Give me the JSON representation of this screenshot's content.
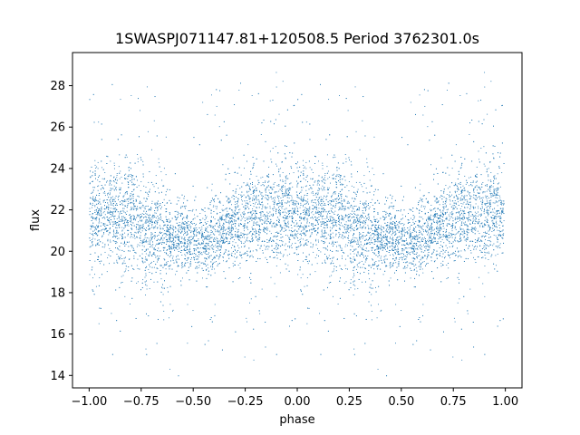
{
  "chart_data": {
    "type": "scatter",
    "title": "1SWASPJ071147.81+120508.5 Period 3762301.0s",
    "xlabel": "phase",
    "ylabel": "flux",
    "xlim": [
      -1.08,
      1.08
    ],
    "ylim": [
      13.4,
      29.6
    ],
    "x_ticks": [
      -1.0,
      -0.75,
      -0.5,
      -0.25,
      0.0,
      0.25,
      0.5,
      0.75,
      1.0
    ],
    "x_tick_labels": [
      "−1.00",
      "−0.75",
      "−0.50",
      "−0.25",
      "0.00",
      "0.25",
      "0.50",
      "0.75",
      "1.00"
    ],
    "y_ticks": [
      14,
      16,
      18,
      20,
      22,
      24,
      26,
      28
    ],
    "y_tick_labels": [
      "14",
      "16",
      "18",
      "20",
      "22",
      "24",
      "26",
      "28"
    ],
    "grid": false,
    "legend": "none",
    "marker_color": "#1f77b4",
    "folded_period_phase": 1.0,
    "description_free_profile": {
      "phase_points": [
        0.0,
        0.05,
        0.1,
        0.15,
        0.2,
        0.25,
        0.3,
        0.35,
        0.4,
        0.45,
        0.5,
        0.55,
        0.6,
        0.65,
        0.7,
        0.75,
        0.8,
        0.85,
        0.9,
        0.95
      ],
      "median_flux": [
        21.8,
        21.6,
        21.9,
        21.4,
        21.8,
        21.1,
        20.9,
        20.8,
        20.6,
        20.7,
        20.5,
        20.4,
        20.8,
        21.2,
        21.4,
        21.6,
        21.5,
        21.7,
        21.9,
        22.0
      ],
      "scatter": [
        1.2,
        1.3,
        1.1,
        1.2,
        1.3,
        1.3,
        1.2,
        1.4,
        0.6,
        0.9,
        0.8,
        0.8,
        1.0,
        0.6,
        1.1,
        1.2,
        1.2,
        1.1,
        1.3,
        1.2
      ]
    }
  }
}
